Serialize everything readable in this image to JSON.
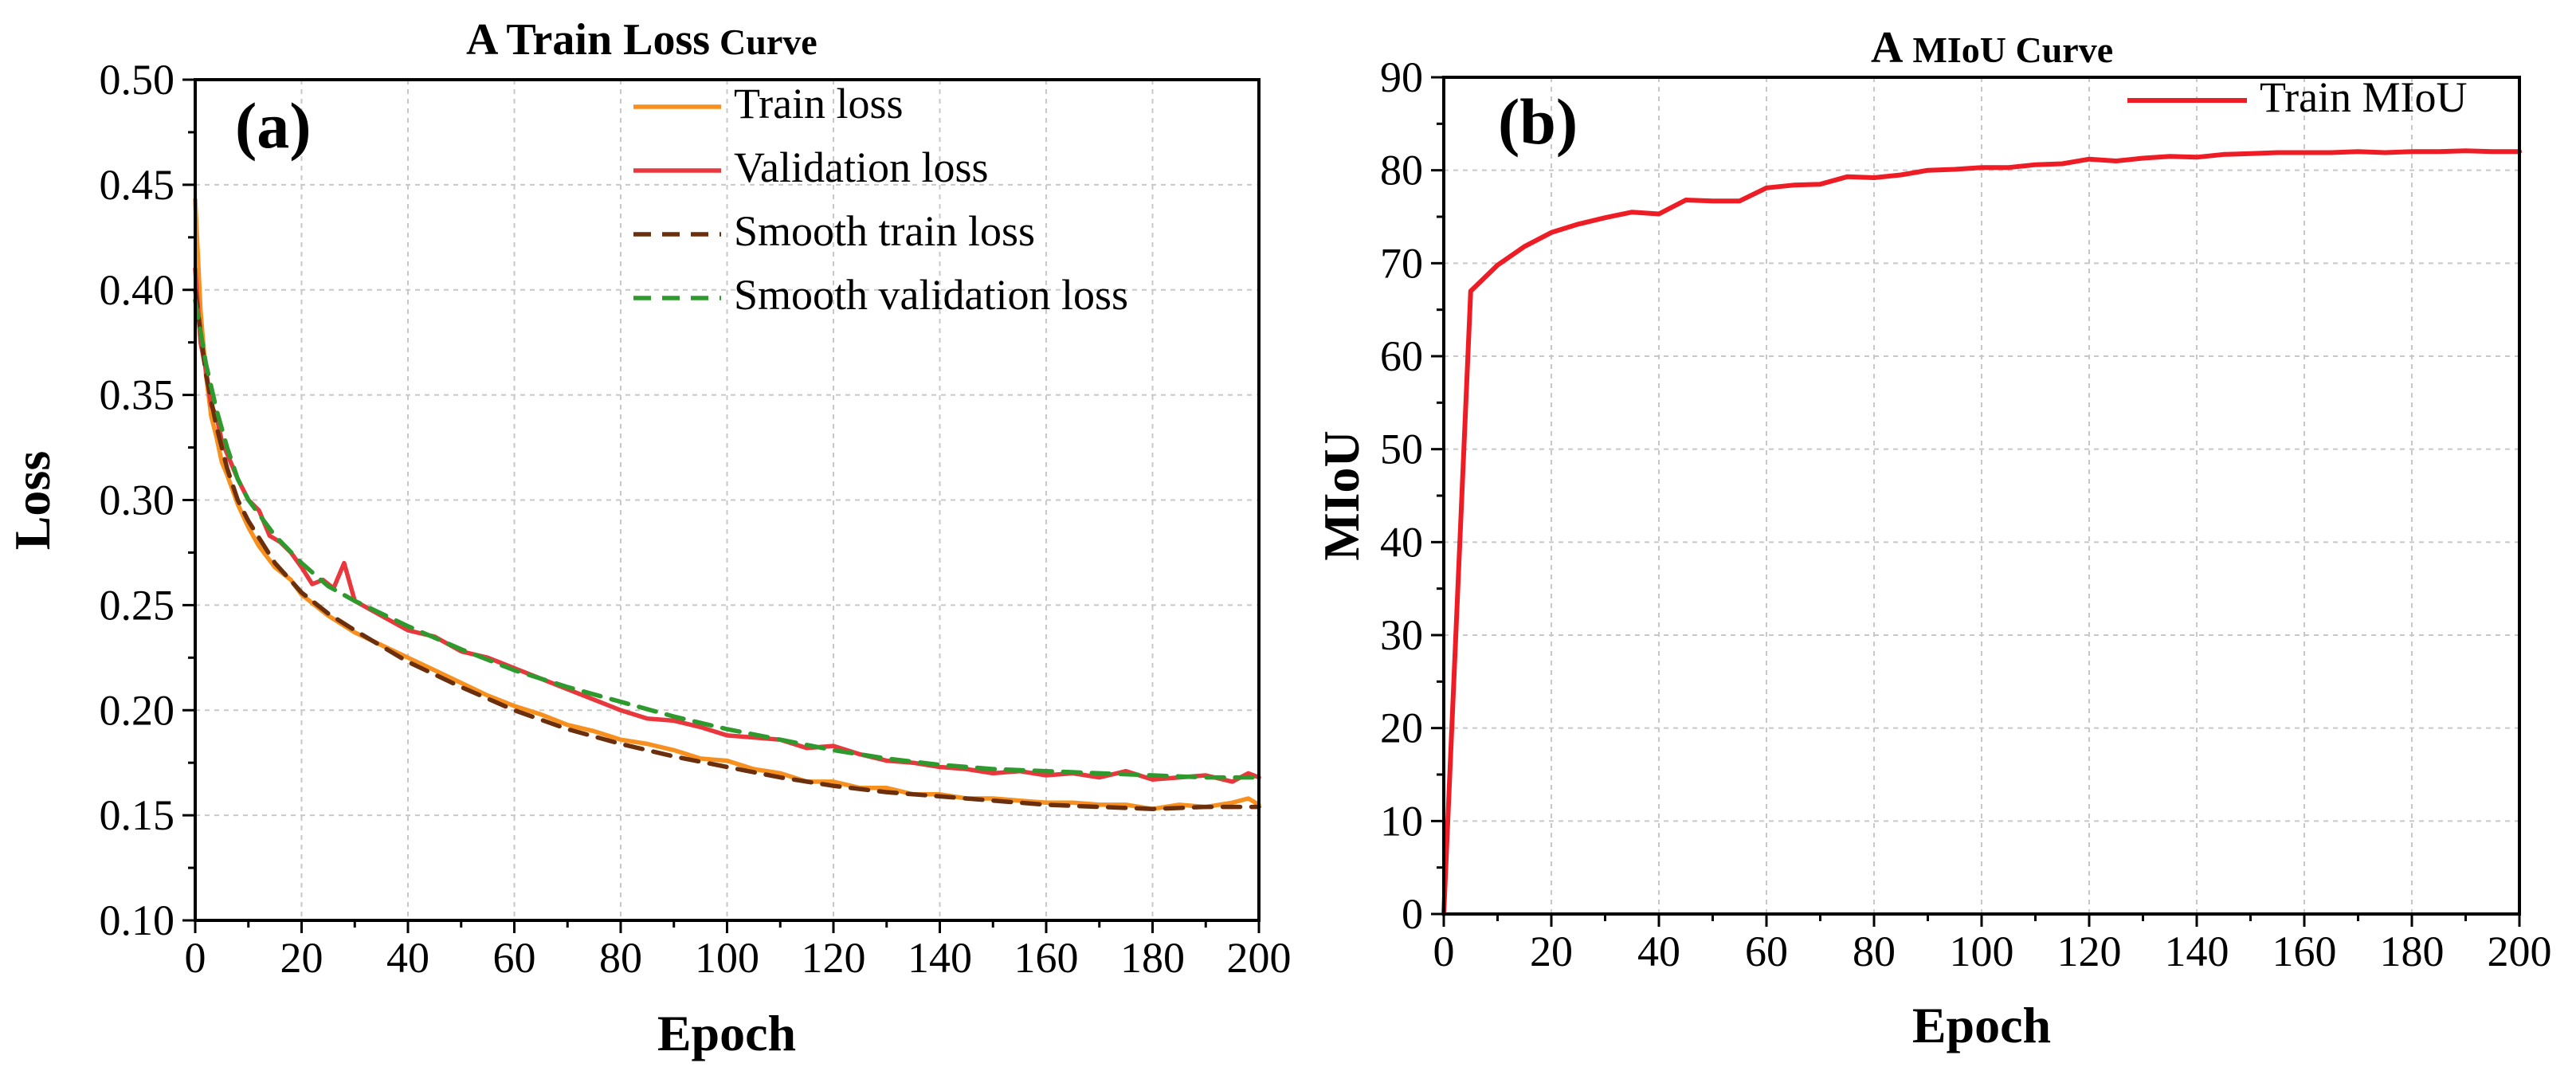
{
  "chart_data": [
    {
      "panel": "(a)",
      "type": "line",
      "title": "A Train Loss",
      "title_suffix": "Curve",
      "xlabel": "Epoch",
      "ylabel": "Loss",
      "xlim": [
        0,
        200
      ],
      "ylim": [
        0.1,
        0.5
      ],
      "xticks": [
        0,
        20,
        40,
        60,
        80,
        100,
        120,
        140,
        160,
        180,
        200
      ],
      "yticks": [
        0.1,
        0.15,
        0.2,
        0.25,
        0.3,
        0.35,
        0.4,
        0.45,
        0.5
      ],
      "ytick_labels": [
        "0.10",
        "0.15",
        "0.20",
        "0.25",
        "0.30",
        "0.35",
        "0.40",
        "0.45",
        "0.50"
      ],
      "grid": true,
      "legend_position": "top-right",
      "series": [
        {
          "name": "Train loss",
          "color": "#f7901e",
          "style": "solid",
          "x": [
            0,
            1,
            2,
            3,
            4,
            5,
            6,
            8,
            10,
            12,
            15,
            18,
            20,
            25,
            30,
            35,
            40,
            45,
            50,
            55,
            60,
            65,
            70,
            75,
            80,
            85,
            90,
            95,
            100,
            105,
            110,
            115,
            120,
            125,
            130,
            135,
            140,
            145,
            150,
            155,
            160,
            165,
            170,
            175,
            180,
            185,
            190,
            195,
            198,
            200
          ],
          "y": [
            0.443,
            0.39,
            0.36,
            0.34,
            0.33,
            0.318,
            0.312,
            0.298,
            0.287,
            0.278,
            0.268,
            0.262,
            0.255,
            0.245,
            0.237,
            0.231,
            0.225,
            0.219,
            0.213,
            0.207,
            0.202,
            0.198,
            0.193,
            0.19,
            0.186,
            0.184,
            0.181,
            0.177,
            0.176,
            0.172,
            0.17,
            0.166,
            0.166,
            0.163,
            0.163,
            0.16,
            0.16,
            0.158,
            0.158,
            0.157,
            0.156,
            0.156,
            0.155,
            0.155,
            0.153,
            0.155,
            0.154,
            0.156,
            0.158,
            0.155
          ]
        },
        {
          "name": "Validation loss",
          "color": "#e8383d",
          "style": "solid",
          "x": [
            0,
            1,
            2,
            3,
            4,
            5,
            6,
            8,
            10,
            12,
            14,
            16,
            18,
            20,
            22,
            24,
            26,
            28,
            30,
            35,
            40,
            45,
            50,
            55,
            60,
            65,
            70,
            75,
            80,
            85,
            90,
            95,
            100,
            105,
            110,
            115,
            120,
            125,
            130,
            135,
            140,
            145,
            150,
            155,
            160,
            165,
            170,
            175,
            180,
            185,
            190,
            195,
            198,
            200
          ],
          "y": [
            0.41,
            0.375,
            0.362,
            0.345,
            0.34,
            0.328,
            0.322,
            0.31,
            0.3,
            0.295,
            0.283,
            0.28,
            0.275,
            0.268,
            0.26,
            0.262,
            0.258,
            0.27,
            0.252,
            0.245,
            0.238,
            0.235,
            0.228,
            0.225,
            0.22,
            0.215,
            0.21,
            0.205,
            0.2,
            0.196,
            0.195,
            0.192,
            0.188,
            0.187,
            0.186,
            0.182,
            0.183,
            0.179,
            0.176,
            0.175,
            0.173,
            0.172,
            0.17,
            0.171,
            0.169,
            0.17,
            0.168,
            0.171,
            0.167,
            0.168,
            0.169,
            0.166,
            0.17,
            0.168
          ]
        },
        {
          "name": "Smooth train loss",
          "color": "#6b2f0e",
          "style": "dashed",
          "x": [
            0,
            2,
            4,
            6,
            8,
            10,
            15,
            20,
            25,
            30,
            40,
            50,
            60,
            70,
            80,
            90,
            100,
            110,
            120,
            130,
            140,
            150,
            160,
            170,
            180,
            190,
            200
          ],
          "y": [
            0.4,
            0.36,
            0.335,
            0.315,
            0.3,
            0.29,
            0.27,
            0.256,
            0.246,
            0.238,
            0.223,
            0.211,
            0.2,
            0.191,
            0.184,
            0.178,
            0.173,
            0.168,
            0.164,
            0.161,
            0.159,
            0.157,
            0.155,
            0.154,
            0.153,
            0.154,
            0.154
          ]
        },
        {
          "name": "Smooth validation loss",
          "color": "#2e9a2e",
          "style": "dashed",
          "x": [
            0,
            2,
            4,
            6,
            8,
            10,
            15,
            20,
            25,
            30,
            40,
            50,
            60,
            70,
            80,
            90,
            100,
            110,
            120,
            130,
            140,
            150,
            160,
            170,
            180,
            190,
            200
          ],
          "y": [
            0.395,
            0.365,
            0.343,
            0.325,
            0.31,
            0.3,
            0.283,
            0.27,
            0.259,
            0.252,
            0.24,
            0.229,
            0.219,
            0.211,
            0.204,
            0.197,
            0.191,
            0.186,
            0.181,
            0.177,
            0.174,
            0.172,
            0.171,
            0.17,
            0.169,
            0.168,
            0.168
          ]
        }
      ]
    },
    {
      "panel": "(b)",
      "type": "line",
      "title": "A",
      "title_suffix": "MIoU Curve",
      "xlabel": "Epoch",
      "ylabel": "MIoU",
      "xlim": [
        0,
        200
      ],
      "ylim": [
        0,
        90
      ],
      "xticks": [
        0,
        20,
        40,
        60,
        80,
        100,
        120,
        140,
        160,
        180,
        200
      ],
      "yticks": [
        0,
        10,
        20,
        30,
        40,
        50,
        60,
        70,
        80,
        90
      ],
      "grid": true,
      "legend_position": "top-right",
      "series": [
        {
          "name": "Train MIoU",
          "color": "#ee1c24",
          "style": "solid",
          "x": [
            0,
            5,
            10,
            15,
            20,
            25,
            30,
            35,
            40,
            45,
            50,
            55,
            60,
            65,
            70,
            75,
            80,
            85,
            90,
            95,
            100,
            105,
            110,
            115,
            120,
            125,
            130,
            135,
            140,
            145,
            150,
            155,
            160,
            165,
            170,
            175,
            180,
            185,
            190,
            195,
            200
          ],
          "y": [
            0,
            67.0,
            69.8,
            71.8,
            73.3,
            74.2,
            74.9,
            75.5,
            75.3,
            76.8,
            76.7,
            76.7,
            78.1,
            78.4,
            78.5,
            79.3,
            79.2,
            79.5,
            80.0,
            80.1,
            80.3,
            80.3,
            80.6,
            80.7,
            81.2,
            81.0,
            81.3,
            81.5,
            81.4,
            81.7,
            81.8,
            81.9,
            81.9,
            81.9,
            82.0,
            81.9,
            82.0,
            82.0,
            82.1,
            82.0,
            82.0
          ]
        }
      ]
    }
  ]
}
